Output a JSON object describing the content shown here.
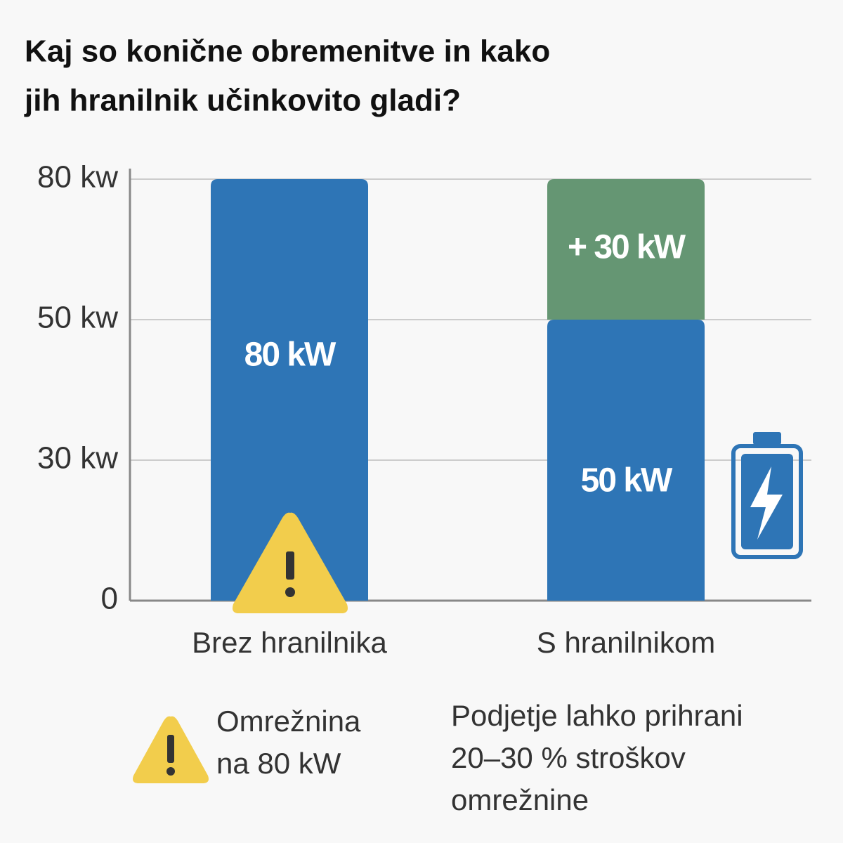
{
  "chart_data": {
    "type": "stacked-bar",
    "title": [
      "Kaj so konične obremenitve in kako",
      "jih hranilnik učinkovito gladi?"
    ],
    "categories": [
      "Brez hranilnika",
      "S hranilnikom"
    ],
    "series": [
      {
        "color": "#2e75b6",
        "values": [
          80,
          50
        ],
        "value_labels": [
          "80 kW",
          "50 kW"
        ]
      },
      {
        "color": "#659673",
        "values": [
          null,
          30
        ],
        "value_labels": [
          null,
          "+ 30 kW"
        ]
      }
    ],
    "ylim": [
      0,
      80
    ],
    "yticks": [
      0,
      {
        "value": 30,
        "label": "30 kw"
      },
      {
        "value": 50,
        "label": "50 kw"
      },
      {
        "value": 80,
        "label": "80 kw"
      }
    ],
    "grid": true,
    "annotations": [
      [
        "Omrežnina",
        "na 80 kW"
      ],
      [
        "Podjetje lahko prihrani",
        "20–30 % stroškov",
        "omrežnine"
      ]
    ]
  }
}
